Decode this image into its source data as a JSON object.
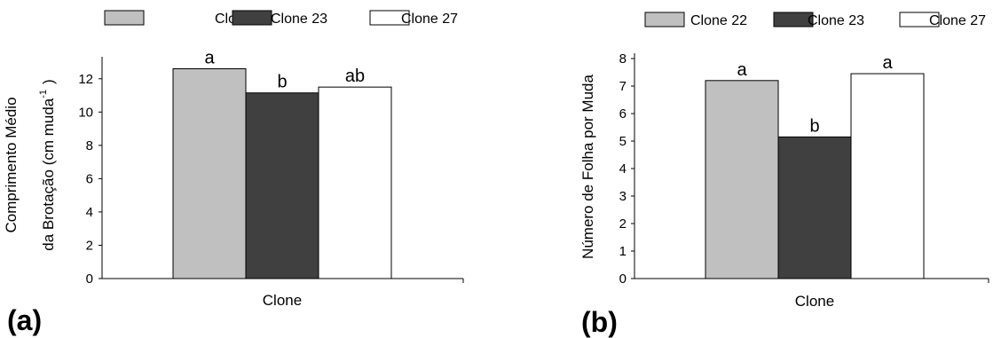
{
  "chart_data": [
    {
      "type": "bar",
      "panel_label": "(a)",
      "categories": [
        "Clone"
      ],
      "series": [
        {
          "name": "Clone 22",
          "values": [
            12.6
          ],
          "color": "#c0c0c0",
          "significance": "a"
        },
        {
          "name": "Clone 23",
          "values": [
            11.15
          ],
          "color": "#404040",
          "significance": "b"
        },
        {
          "name": "Clone 27",
          "values": [
            11.5
          ],
          "color": "#ffffff",
          "significance": "ab"
        }
      ],
      "xlabel": "Clone",
      "ylabel_line1": "Comprimento Médio",
      "ylabel_line2": "da Brotação (cm muda",
      "ylabel_sup": "-1",
      "ylabel_close": ")",
      "ylim": [
        0,
        13
      ],
      "yticks": [
        0,
        2,
        4,
        6,
        8,
        10,
        12
      ],
      "legend_position": "top",
      "grid": false
    },
    {
      "type": "bar",
      "panel_label": "(b)",
      "categories": [
        "Clone"
      ],
      "series": [
        {
          "name": "Clone 22",
          "values": [
            7.2
          ],
          "color": "#c0c0c0",
          "significance": "a"
        },
        {
          "name": "Clone 23",
          "values": [
            5.15
          ],
          "color": "#404040",
          "significance": "b"
        },
        {
          "name": "Clone 27",
          "values": [
            7.45
          ],
          "color": "#ffffff",
          "significance": "a"
        }
      ],
      "xlabel": "Clone",
      "ylabel": "Número de Folha por Muda",
      "ylim": [
        0,
        8
      ],
      "yticks": [
        0,
        1,
        2,
        3,
        4,
        5,
        6,
        7,
        8
      ],
      "legend_position": "top",
      "grid": false
    }
  ]
}
